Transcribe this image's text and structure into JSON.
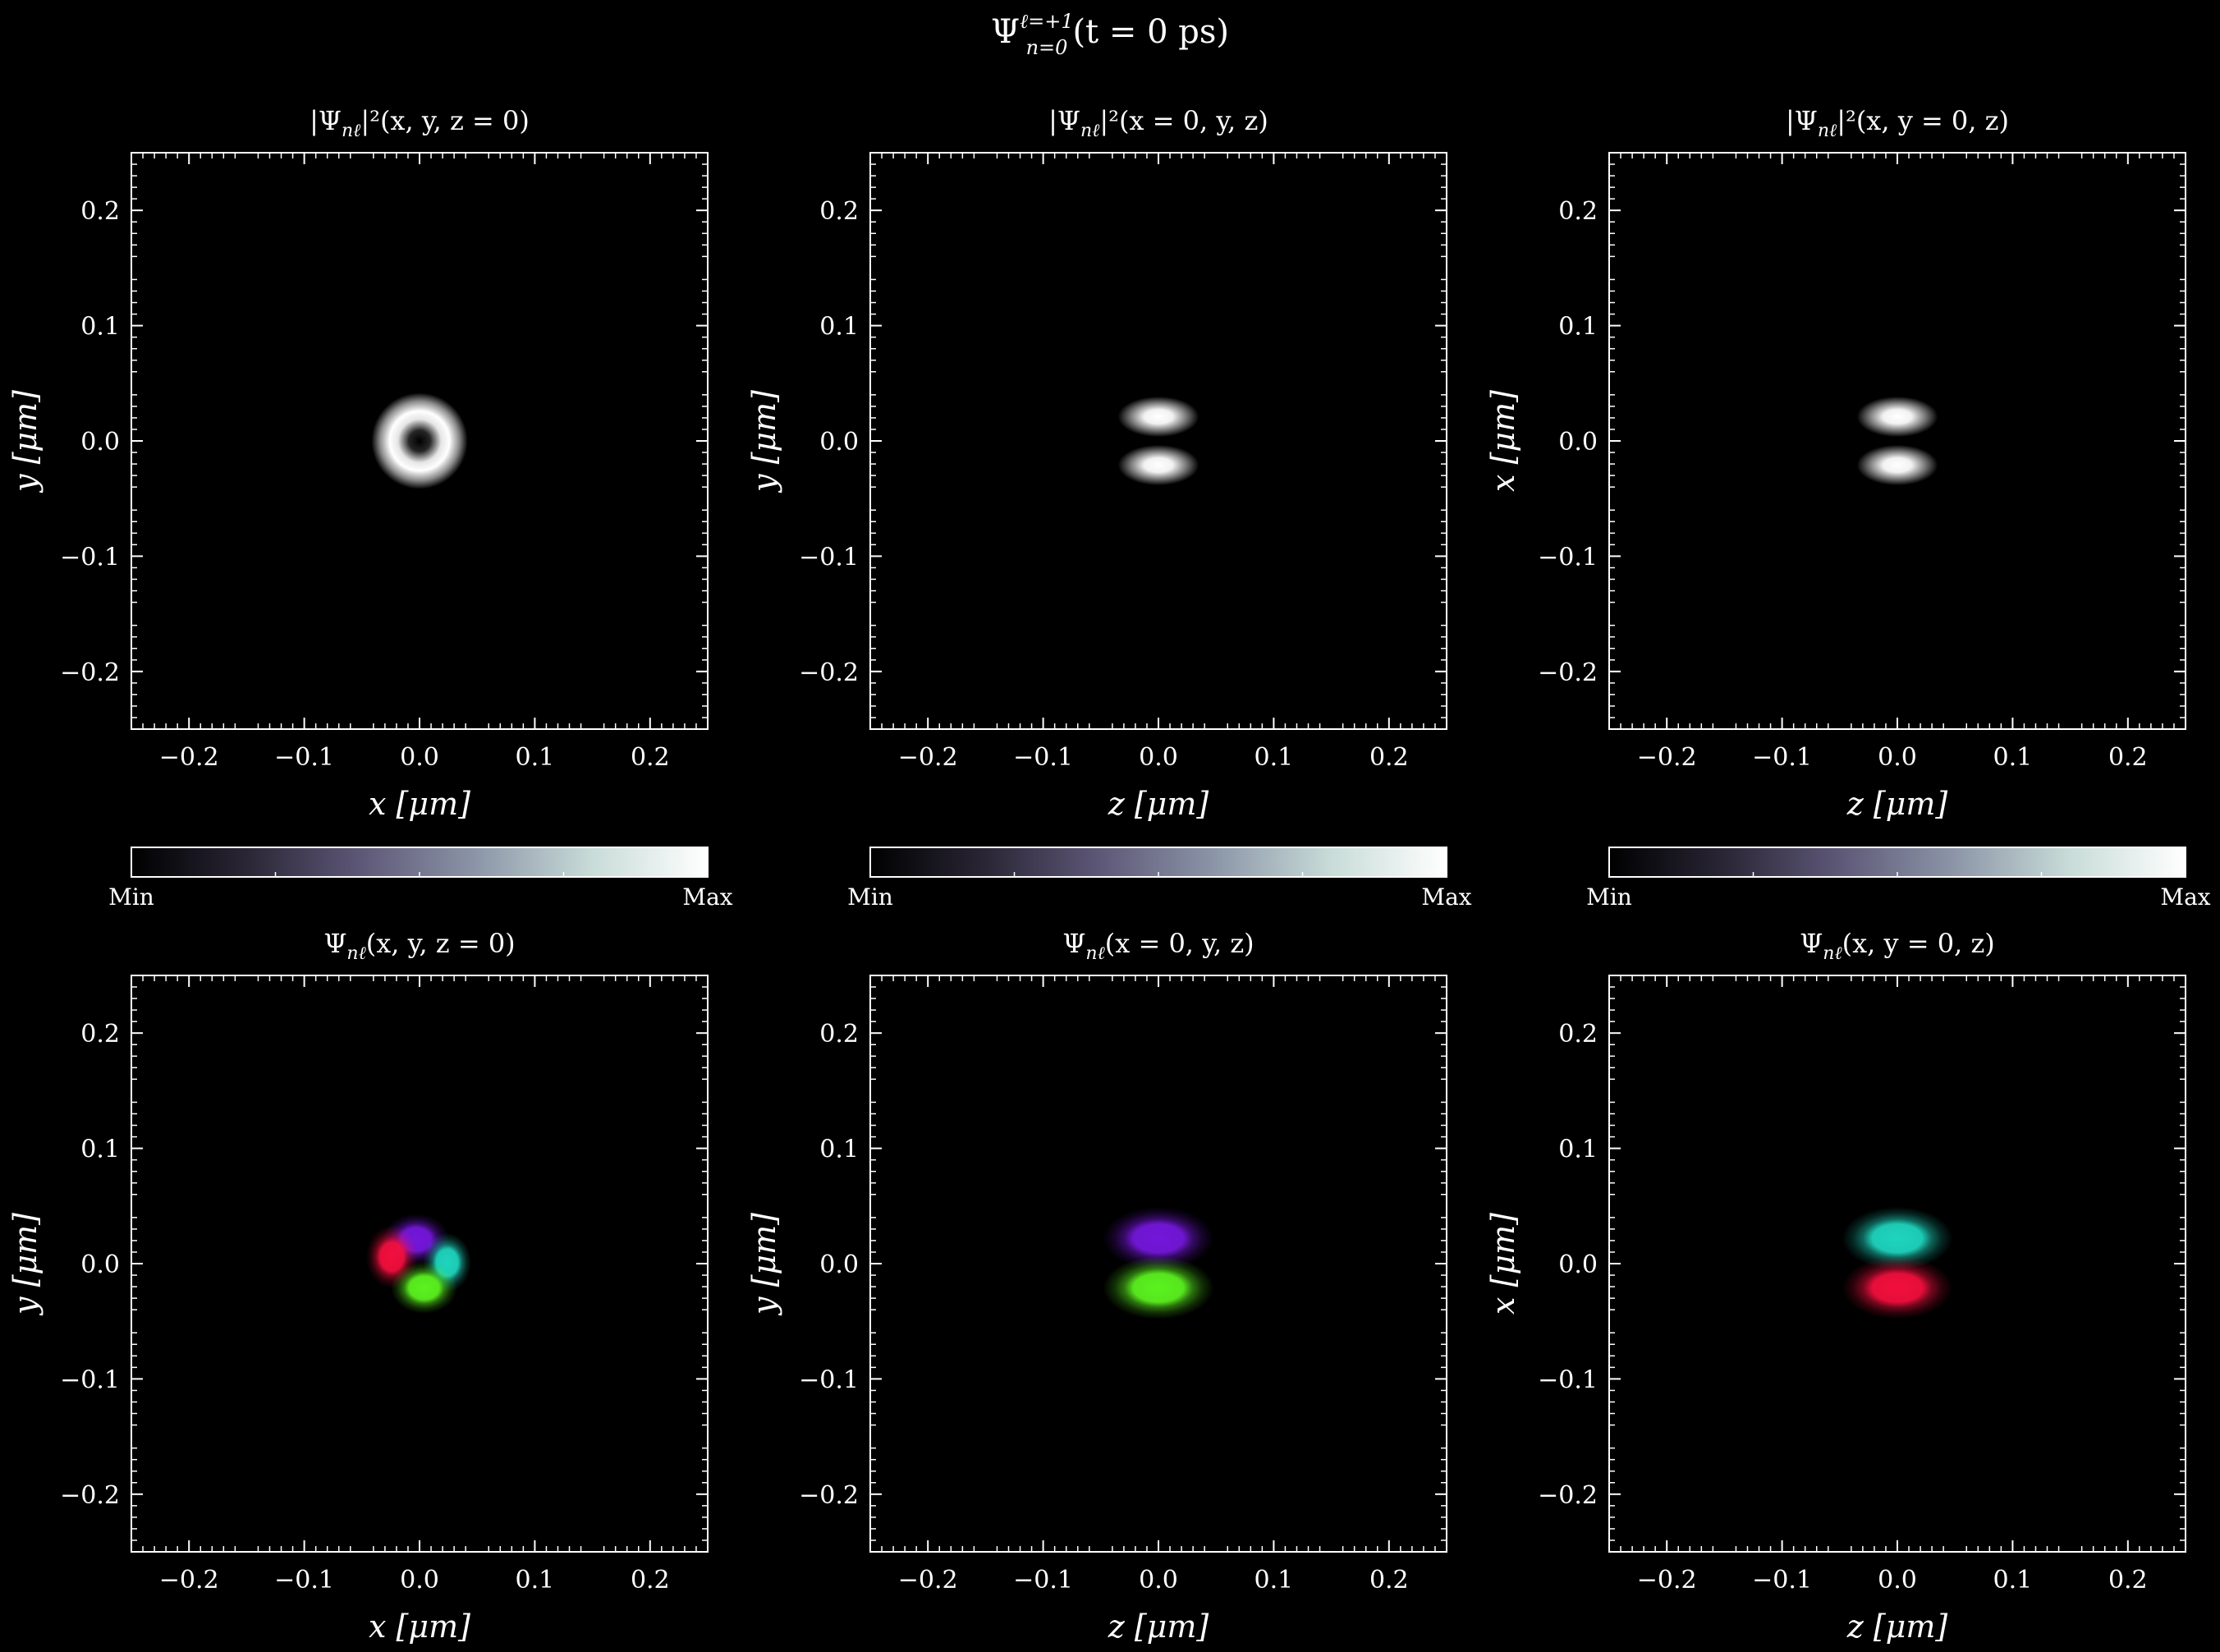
{
  "figure": {
    "title": "Ψ_{n=0}^{ℓ=+1}(t=0 ps)",
    "title_parts": {
      "base": "Ψ",
      "sup": "ℓ=+1",
      "sub": "n=0",
      "rest": "(t = 0 ps)"
    }
  },
  "colorbar": {
    "min_label": "Min",
    "max_label": "Max",
    "stops": [
      "#000000",
      "#2a2636",
      "#5e5878",
      "#8c96a8",
      "#c8dcd8",
      "#ffffff"
    ]
  },
  "chart_data": [
    {
      "id": "density-xy",
      "type": "heatmap",
      "row": 0,
      "col": 0,
      "title": "|Ψnℓ|²(x, y, z = 0)",
      "title_parts": {
        "pre": "|Ψ",
        "sub": "nℓ",
        "post": "|²(x, y, z = 0)"
      },
      "xlabel": "x [μm]",
      "ylabel": "y [μm]",
      "xlim": [
        -0.25,
        0.25
      ],
      "ylim": [
        -0.25,
        0.25
      ],
      "xticks": [
        "−0.2",
        "−0.1",
        "0.0",
        "0.1",
        "0.2"
      ],
      "yticks": [
        "−0.2",
        "−0.1",
        "0.0",
        "0.1",
        "0.2"
      ],
      "features": [
        {
          "shape": "ring",
          "x": 0.0,
          "y": 0.0,
          "radius": 0.022,
          "color": "#ffffff"
        }
      ]
    },
    {
      "id": "density-zy",
      "type": "heatmap",
      "row": 0,
      "col": 1,
      "title": "|Ψnℓ|²(x = 0, y, z)",
      "title_parts": {
        "pre": "|Ψ",
        "sub": "nℓ",
        "post": "|²(x = 0, y, z)"
      },
      "xlabel": "z [μm]",
      "ylabel": "y [μm]",
      "xlim": [
        -0.25,
        0.25
      ],
      "ylim": [
        -0.25,
        0.25
      ],
      "xticks": [
        "−0.2",
        "−0.1",
        "0.0",
        "0.1",
        "0.2"
      ],
      "yticks": [
        "−0.2",
        "−0.1",
        "0.0",
        "0.1",
        "0.2"
      ],
      "features": [
        {
          "shape": "lobe",
          "x": 0.0,
          "y": 0.021,
          "rx": 0.022,
          "ry": 0.011,
          "color": "#ffffff"
        },
        {
          "shape": "lobe",
          "x": 0.0,
          "y": -0.021,
          "rx": 0.022,
          "ry": 0.011,
          "color": "#ffffff"
        }
      ]
    },
    {
      "id": "density-zx",
      "type": "heatmap",
      "row": 0,
      "col": 2,
      "title": "|Ψnℓ|²(x, y = 0, z)",
      "title_parts": {
        "pre": "|Ψ",
        "sub": "nℓ",
        "post": "|²(x, y = 0, z)"
      },
      "xlabel": "z [μm]",
      "ylabel": "x [μm]",
      "xlim": [
        -0.25,
        0.25
      ],
      "ylim": [
        -0.25,
        0.25
      ],
      "xticks": [
        "−0.2",
        "−0.1",
        "0.0",
        "0.1",
        "0.2"
      ],
      "yticks": [
        "−0.2",
        "−0.1",
        "0.0",
        "0.1",
        "0.2"
      ],
      "features": [
        {
          "shape": "lobe",
          "x": 0.0,
          "y": 0.021,
          "rx": 0.022,
          "ry": 0.011,
          "color": "#ffffff"
        },
        {
          "shape": "lobe",
          "x": 0.0,
          "y": -0.021,
          "rx": 0.022,
          "ry": 0.011,
          "color": "#ffffff"
        }
      ]
    },
    {
      "id": "phase-xy",
      "type": "heatmap",
      "row": 1,
      "col": 0,
      "title": "Ψnℓ(x, y, z = 0)",
      "title_parts": {
        "pre": "Ψ",
        "sub": "nℓ",
        "post": "(x, y, z = 0)"
      },
      "xlabel": "x [μm]",
      "ylabel": "y [μm]",
      "xlim": [
        -0.25,
        0.25
      ],
      "ylim": [
        -0.25,
        0.25
      ],
      "xticks": [
        "−0.2",
        "−0.1",
        "0.0",
        "0.1",
        "0.2"
      ],
      "yticks": [
        "−0.2",
        "−0.1",
        "0.0",
        "0.1",
        "0.2"
      ],
      "features": [
        {
          "shape": "blob",
          "x": -0.003,
          "y": 0.021,
          "rx": 0.018,
          "ry": 0.014,
          "color": "#7a18e6"
        },
        {
          "shape": "blob",
          "x": -0.024,
          "y": 0.006,
          "rx": 0.014,
          "ry": 0.017,
          "color": "#ff1040"
        },
        {
          "shape": "blob",
          "x": 0.024,
          "y": 0.001,
          "rx": 0.013,
          "ry": 0.016,
          "color": "#20e0c8"
        },
        {
          "shape": "blob",
          "x": 0.004,
          "y": -0.021,
          "rx": 0.018,
          "ry": 0.014,
          "color": "#60ff20"
        }
      ]
    },
    {
      "id": "phase-zy",
      "type": "heatmap",
      "row": 1,
      "col": 1,
      "title": "Ψnℓ(x = 0, y, z)",
      "title_parts": {
        "pre": "Ψ",
        "sub": "nℓ",
        "post": "(x = 0, y, z)"
      },
      "xlabel": "z [μm]",
      "ylabel": "y [μm]",
      "xlim": [
        -0.25,
        0.25
      ],
      "ylim": [
        -0.25,
        0.25
      ],
      "xticks": [
        "−0.2",
        "−0.1",
        "0.0",
        "0.1",
        "0.2"
      ],
      "yticks": [
        "−0.2",
        "−0.1",
        "0.0",
        "0.1",
        "0.2"
      ],
      "features": [
        {
          "shape": "blob",
          "x": 0.0,
          "y": 0.022,
          "rx": 0.03,
          "ry": 0.017,
          "color": "#7a18e6"
        },
        {
          "shape": "blob",
          "x": 0.0,
          "y": -0.021,
          "rx": 0.03,
          "ry": 0.017,
          "color": "#60ff20"
        }
      ]
    },
    {
      "id": "phase-zx",
      "type": "heatmap",
      "row": 1,
      "col": 2,
      "title": "Ψnℓ(x, y = 0, z)",
      "title_parts": {
        "pre": "Ψ",
        "sub": "nℓ",
        "post": "(x, y = 0, z)"
      },
      "xlabel": "z [μm]",
      "ylabel": "x [μm]",
      "xlim": [
        -0.25,
        0.25
      ],
      "ylim": [
        -0.25,
        0.25
      ],
      "xticks": [
        "−0.2",
        "−0.1",
        "0.0",
        "0.1",
        "0.2"
      ],
      "yticks": [
        "−0.2",
        "−0.1",
        "0.0",
        "0.1",
        "0.2"
      ],
      "features": [
        {
          "shape": "blob",
          "x": 0.0,
          "y": 0.022,
          "rx": 0.03,
          "ry": 0.017,
          "color": "#20e0c8"
        },
        {
          "shape": "blob",
          "x": 0.0,
          "y": -0.021,
          "rx": 0.03,
          "ry": 0.017,
          "color": "#ff1040"
        }
      ]
    }
  ]
}
